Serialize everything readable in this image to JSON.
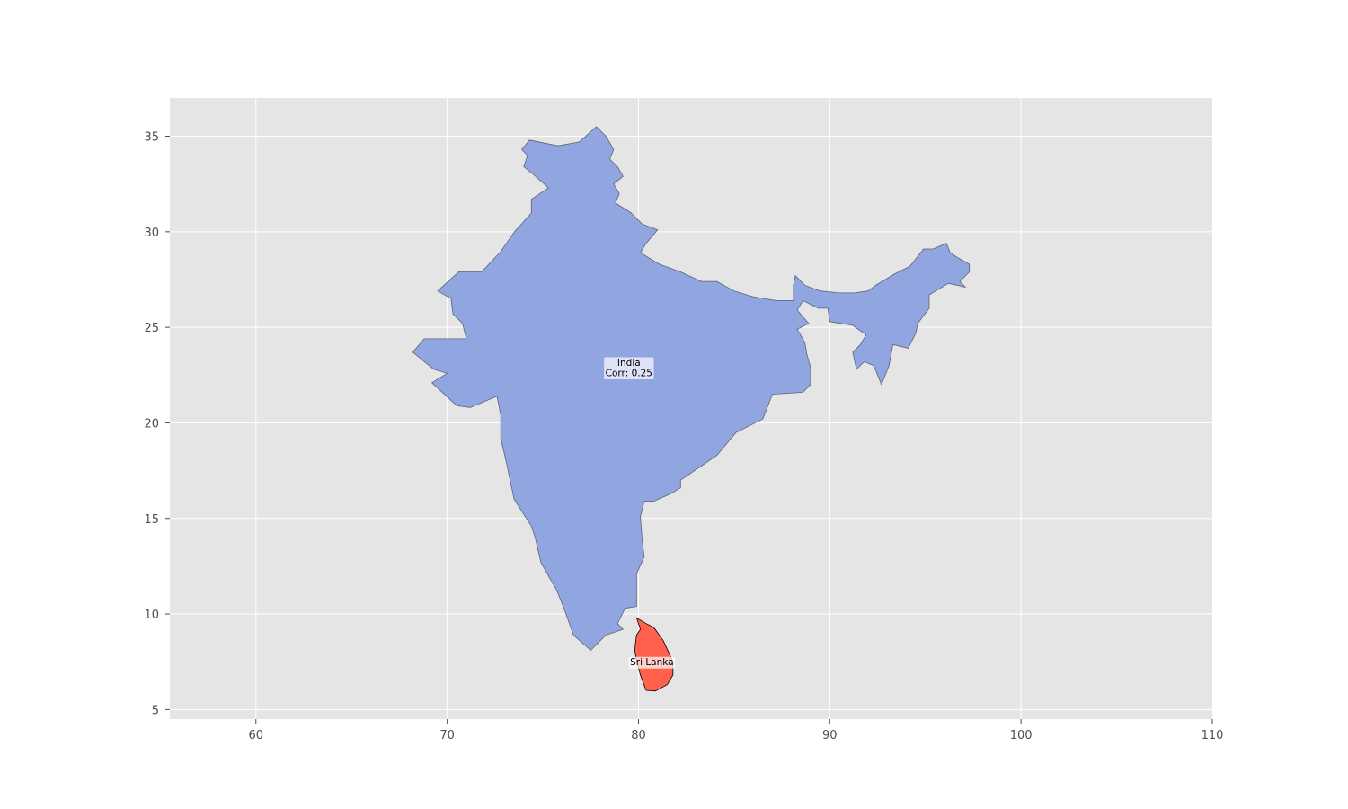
{
  "map": {
    "x_ticks": [
      "60",
      "70",
      "80",
      "90",
      "100",
      "110"
    ],
    "y_ticks": [
      "5",
      "10",
      "15",
      "20",
      "25",
      "30",
      "35"
    ],
    "xlim": [
      55.5,
      110
    ],
    "ylim": [
      4.5,
      37
    ],
    "grid": true,
    "background_color": "#e5e5e5",
    "grid_color": "#ffffff",
    "regions": [
      {
        "name": "India",
        "label_line1": "India",
        "label_line2": "Corr: 0.25",
        "label_position": [
          79.5,
          22.9
        ],
        "fill_color": "#91a5e0",
        "edge_color": "#5a6478",
        "outline": [
          [
            77.8,
            35.5
          ],
          [
            78.3,
            35.0
          ],
          [
            78.7,
            34.3
          ],
          [
            78.5,
            33.8
          ],
          [
            78.9,
            33.4
          ],
          [
            79.2,
            32.9
          ],
          [
            78.7,
            32.5
          ],
          [
            79.0,
            32.0
          ],
          [
            78.8,
            31.5
          ],
          [
            79.6,
            31.0
          ],
          [
            80.2,
            30.4
          ],
          [
            81.0,
            30.1
          ],
          [
            80.4,
            29.4
          ],
          [
            80.1,
            28.9
          ],
          [
            81.1,
            28.3
          ],
          [
            82.2,
            27.9
          ],
          [
            83.3,
            27.4
          ],
          [
            84.1,
            27.4
          ],
          [
            85.0,
            26.9
          ],
          [
            86.0,
            26.6
          ],
          [
            87.2,
            26.4
          ],
          [
            88.1,
            26.4
          ],
          [
            88.1,
            27.2
          ],
          [
            88.2,
            27.7
          ],
          [
            88.7,
            27.2
          ],
          [
            89.5,
            26.9
          ],
          [
            90.5,
            26.8
          ],
          [
            91.3,
            26.8
          ],
          [
            92.0,
            26.9
          ],
          [
            92.4,
            27.2
          ],
          [
            93.4,
            27.8
          ],
          [
            94.2,
            28.2
          ],
          [
            94.9,
            29.1
          ],
          [
            95.4,
            29.1
          ],
          [
            96.1,
            29.4
          ],
          [
            96.3,
            28.9
          ],
          [
            96.6,
            28.7
          ],
          [
            97.3,
            28.3
          ],
          [
            97.3,
            27.9
          ],
          [
            96.8,
            27.4
          ],
          [
            97.1,
            27.1
          ],
          [
            96.2,
            27.3
          ],
          [
            95.2,
            26.7
          ],
          [
            95.2,
            26.0
          ],
          [
            94.6,
            25.2
          ],
          [
            94.5,
            24.7
          ],
          [
            94.1,
            23.9
          ],
          [
            93.3,
            24.1
          ],
          [
            93.1,
            23.0
          ],
          [
            92.7,
            22.0
          ],
          [
            92.3,
            23.0
          ],
          [
            91.8,
            23.2
          ],
          [
            91.4,
            22.8
          ],
          [
            91.2,
            23.7
          ],
          [
            91.6,
            24.1
          ],
          [
            91.9,
            24.6
          ],
          [
            91.2,
            25.1
          ],
          [
            90.0,
            25.3
          ],
          [
            89.9,
            26.0
          ],
          [
            89.4,
            26.0
          ],
          [
            88.6,
            26.4
          ],
          [
            88.3,
            25.9
          ],
          [
            88.9,
            25.2
          ],
          [
            88.3,
            24.9
          ],
          [
            88.7,
            24.2
          ],
          [
            88.8,
            23.6
          ],
          [
            89.0,
            22.9
          ],
          [
            89.0,
            22.0
          ],
          [
            88.6,
            21.6
          ],
          [
            87.0,
            21.5
          ],
          [
            86.5,
            20.2
          ],
          [
            85.1,
            19.5
          ],
          [
            84.1,
            18.3
          ],
          [
            82.2,
            17.0
          ],
          [
            82.2,
            16.6
          ],
          [
            81.7,
            16.3
          ],
          [
            80.8,
            15.9
          ],
          [
            80.3,
            15.9
          ],
          [
            80.1,
            15.1
          ],
          [
            80.2,
            13.8
          ],
          [
            80.3,
            13.0
          ],
          [
            79.9,
            12.1
          ],
          [
            79.9,
            10.4
          ],
          [
            79.3,
            10.3
          ],
          [
            78.9,
            9.5
          ],
          [
            79.2,
            9.2
          ],
          [
            78.3,
            8.9
          ],
          [
            77.5,
            8.1
          ],
          [
            76.6,
            8.9
          ],
          [
            76.1,
            10.3
          ],
          [
            75.7,
            11.3
          ],
          [
            75.4,
            11.8
          ],
          [
            74.9,
            12.7
          ],
          [
            74.6,
            14.0
          ],
          [
            74.4,
            14.6
          ],
          [
            73.5,
            16.0
          ],
          [
            73.1,
            17.9
          ],
          [
            72.8,
            19.2
          ],
          [
            72.8,
            20.4
          ],
          [
            72.6,
            21.4
          ],
          [
            71.2,
            20.8
          ],
          [
            70.5,
            20.9
          ],
          [
            69.2,
            22.1
          ],
          [
            70.0,
            22.6
          ],
          [
            69.3,
            22.8
          ],
          [
            68.2,
            23.7
          ],
          [
            68.8,
            24.4
          ],
          [
            71.0,
            24.4
          ],
          [
            70.8,
            25.2
          ],
          [
            70.3,
            25.7
          ],
          [
            70.2,
            26.5
          ],
          [
            69.5,
            26.9
          ],
          [
            70.6,
            27.9
          ],
          [
            71.8,
            27.9
          ],
          [
            72.8,
            28.96
          ],
          [
            73.5,
            29.98
          ],
          [
            74.4,
            30.98
          ],
          [
            74.4,
            31.7
          ],
          [
            75.3,
            32.3
          ],
          [
            74.5,
            33.0
          ],
          [
            74.0,
            33.4
          ],
          [
            74.2,
            34.0
          ],
          [
            73.9,
            34.3
          ],
          [
            74.3,
            34.8
          ],
          [
            75.8,
            34.5
          ],
          [
            76.9,
            34.7
          ],
          [
            77.8,
            35.5
          ]
        ]
      },
      {
        "name": "Sri Lanka",
        "label_line1": "Sri Lanka",
        "label_position": [
          80.7,
          7.5
        ],
        "fill_color": "#ff614d",
        "edge_color": "#000000",
        "outline": [
          [
            79.9,
            9.8
          ],
          [
            80.4,
            9.5
          ],
          [
            80.8,
            9.3
          ],
          [
            81.3,
            8.6
          ],
          [
            81.8,
            7.5
          ],
          [
            81.8,
            6.8
          ],
          [
            81.5,
            6.3
          ],
          [
            80.9,
            5.97
          ],
          [
            80.4,
            6.0
          ],
          [
            80.1,
            6.8
          ],
          [
            79.9,
            7.6
          ],
          [
            79.8,
            8.1
          ],
          [
            79.9,
            8.9
          ],
          [
            80.1,
            9.2
          ],
          [
            79.9,
            9.8
          ]
        ]
      }
    ]
  }
}
